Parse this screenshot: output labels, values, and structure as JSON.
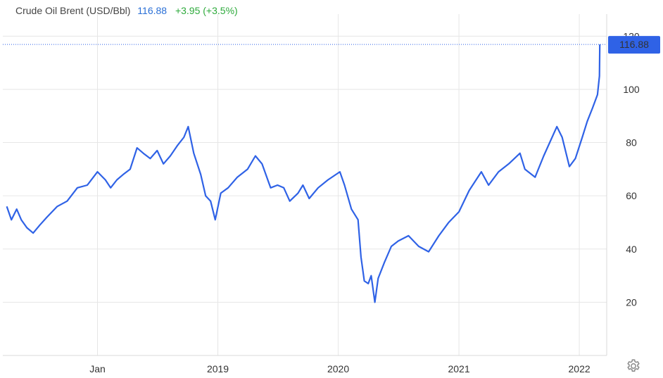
{
  "header": {
    "title": "Crude Oil Brent (USD/Bbl)",
    "price": "116.88",
    "change": "+3.95 (+3.5%)"
  },
  "colors": {
    "line": "#2f62e6",
    "price": "#2a6fd6",
    "change": "#2eaa3c",
    "grid": "#e6e6e6",
    "badge": "#2f62e6"
  },
  "settings_icon": "gear-icon",
  "chart_data": {
    "type": "line",
    "title": "Crude Oil Brent (USD/Bbl)",
    "x_ticks": [
      "Jan",
      "2019",
      "2020",
      "2021",
      "2022"
    ],
    "y_ticks": [
      20,
      40,
      60,
      80,
      100,
      120
    ],
    "ylim": [
      0,
      123
    ],
    "grid": true,
    "last_value": 116.88,
    "last_value_label": "116.88",
    "series": [
      {
        "x": [
          "2017-04-01",
          "2017-04-15",
          "2017-05-01",
          "2017-05-15",
          "2017-06-01",
          "2017-06-20",
          "2017-07-10",
          "2017-08-01",
          "2017-09-01",
          "2017-10-01",
          "2017-11-01",
          "2017-12-01",
          "2018-01-01",
          "2018-01-25",
          "2018-02-10",
          "2018-03-01",
          "2018-03-20",
          "2018-04-10",
          "2018-05-01",
          "2018-05-20",
          "2018-06-10",
          "2018-07-01",
          "2018-07-20",
          "2018-08-10",
          "2018-09-01",
          "2018-09-20",
          "2018-10-03",
          "2018-10-20",
          "2018-11-10",
          "2018-11-25",
          "2018-12-10",
          "2018-12-24",
          "2019-01-10",
          "2019-02-01",
          "2019-03-01",
          "2019-04-01",
          "2019-04-25",
          "2019-05-15",
          "2019-06-10",
          "2019-07-01",
          "2019-07-20",
          "2019-08-07",
          "2019-09-01",
          "2019-09-16",
          "2019-10-05",
          "2019-11-01",
          "2019-12-01",
          "2020-01-06",
          "2020-01-20",
          "2020-02-10",
          "2020-03-01",
          "2020-03-10",
          "2020-03-20",
          "2020-04-01",
          "2020-04-10",
          "2020-04-21",
          "2020-05-01",
          "2020-05-20",
          "2020-06-10",
          "2020-07-01",
          "2020-08-01",
          "2020-09-01",
          "2020-10-01",
          "2020-11-01",
          "2020-12-01",
          "2021-01-01",
          "2021-02-01",
          "2021-03-10",
          "2021-04-01",
          "2021-05-01",
          "2021-06-01",
          "2021-07-05",
          "2021-07-20",
          "2021-08-20",
          "2021-09-15",
          "2021-10-25",
          "2021-11-10",
          "2021-12-02",
          "2021-12-20",
          "2022-01-10",
          "2022-01-25",
          "2022-02-10",
          "2022-02-25",
          "2022-03-03",
          "2022-03-04"
        ],
        "values": [
          56,
          51,
          55,
          51,
          48,
          46,
          49,
          52,
          56,
          58,
          63,
          64,
          69,
          66,
          63,
          66,
          68,
          70,
          78,
          76,
          74,
          77,
          72,
          75,
          79,
          82,
          86,
          76,
          68,
          60,
          58,
          51,
          61,
          63,
          67,
          70,
          75,
          72,
          63,
          64,
          63,
          58,
          61,
          64,
          59,
          63,
          66,
          69,
          64,
          55,
          51,
          37,
          28,
          27,
          30,
          20,
          29,
          35,
          41,
          43,
          45,
          41,
          39,
          45,
          50,
          54,
          62,
          69,
          64,
          69,
          72,
          76,
          70,
          67,
          75,
          86,
          82,
          71,
          74,
          82,
          88,
          93,
          98,
          105,
          116.88
        ]
      }
    ]
  }
}
